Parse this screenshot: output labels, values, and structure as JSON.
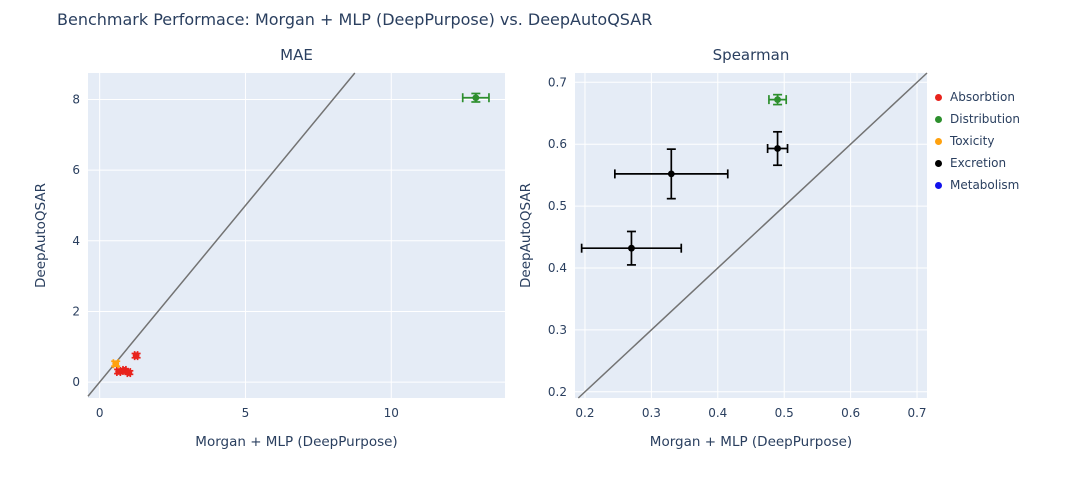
{
  "title": "Benchmark Performace: Morgan + MLP (DeepPurpose) vs. DeepAutoQSAR",
  "colors": {
    "plot_bg": "#e5ecf6",
    "grid": "#ffffff",
    "identity_line": "#737373",
    "text": "#2a3f5f",
    "absorbtion": "#e8231c",
    "distribution": "#2d8f2d",
    "toxicity": "#ffa10e",
    "excretion": "#000000",
    "metabolism": "#1212ec"
  },
  "legend": {
    "items": [
      {
        "label": "Absorbtion",
        "color": "#e8231c"
      },
      {
        "label": "Distribution",
        "color": "#2d8f2d"
      },
      {
        "label": "Toxicity",
        "color": "#ffa10e"
      },
      {
        "label": "Excretion",
        "color": "#000000"
      },
      {
        "label": "Metabolism",
        "color": "#1212ec"
      }
    ]
  },
  "chart_data": [
    {
      "type": "scatter",
      "title": "MAE",
      "xlabel": "Morgan + MLP (DeepPurpose)",
      "ylabel": "DeepAutoQSAR",
      "xlim": [
        -0.4,
        13.9
      ],
      "ylim": [
        -0.45,
        8.75
      ],
      "xticks": [
        0,
        5,
        10
      ],
      "yticks": [
        0,
        2,
        4,
        6,
        8
      ],
      "tick_decimals": 0,
      "grid": true,
      "identity_line": true,
      "series": [
        {
          "name": "Absorbtion",
          "color": "#e8231c",
          "points": [
            {
              "x": 0.65,
              "y": 0.3,
              "ex": 0.06,
              "ey": 0.06
            },
            {
              "x": 0.85,
              "y": 0.33,
              "ex": 0.05,
              "ey": 0.05
            },
            {
              "x": 1.0,
              "y": 0.27,
              "ex": 0.05,
              "ey": 0.05
            },
            {
              "x": 1.25,
              "y": 0.75,
              "ex": 0.05,
              "ey": 0.06
            }
          ]
        },
        {
          "name": "Toxicity",
          "color": "#ffa10e",
          "points": [
            {
              "x": 0.55,
              "y": 0.52,
              "ex": 0.08,
              "ey": 0.07
            }
          ]
        },
        {
          "name": "Distribution",
          "color": "#2d8f2d",
          "points": [
            {
              "x": 12.9,
              "y": 8.05,
              "ex": 0.45,
              "ey": 0.12
            }
          ]
        }
      ]
    },
    {
      "type": "scatter",
      "title": "Spearman",
      "xlabel": "Morgan + MLP (DeepPurpose)",
      "ylabel": "DeepAutoQSAR",
      "xlim": [
        0.185,
        0.715
      ],
      "ylim": [
        0.19,
        0.715
      ],
      "xticks": [
        0.2,
        0.3,
        0.4,
        0.5,
        0.6,
        0.7
      ],
      "yticks": [
        0.2,
        0.3,
        0.4,
        0.5,
        0.6,
        0.7
      ],
      "tick_decimals": 1,
      "grid": true,
      "identity_line": true,
      "series": [
        {
          "name": "Distribution",
          "color": "#2d8f2d",
          "points": [
            {
              "x": 0.49,
              "y": 0.672,
              "ex": 0.013,
              "ey": 0.008
            }
          ]
        },
        {
          "name": "Excretion",
          "color": "#000000",
          "points": [
            {
              "x": 0.49,
              "y": 0.593,
              "ex": 0.015,
              "ey": 0.027
            },
            {
              "x": 0.33,
              "y": 0.552,
              "ex": 0.085,
              "ey": 0.04
            },
            {
              "x": 0.27,
              "y": 0.432,
              "ex": 0.075,
              "ey": 0.027
            }
          ]
        }
      ]
    }
  ]
}
